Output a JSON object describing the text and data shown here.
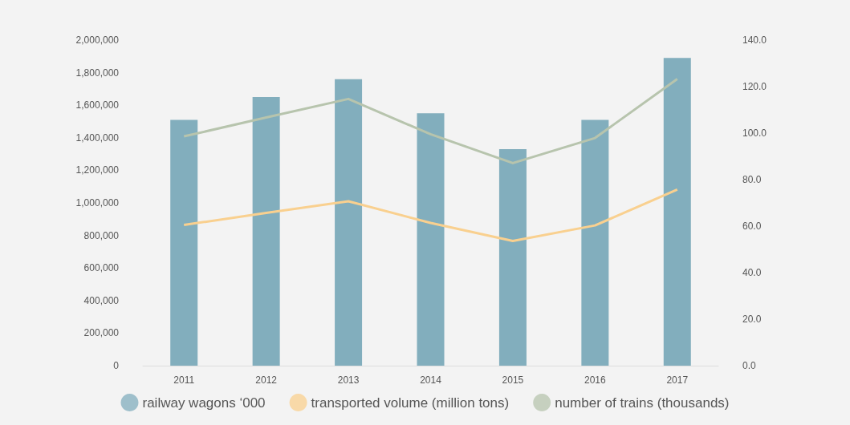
{
  "chart_data": {
    "type": "bar",
    "categories": [
      "2011",
      "2012",
      "2013",
      "2014",
      "2015",
      "2016",
      "2017"
    ],
    "series": [
      {
        "name": "railway wagons ‘000",
        "color": "#82aebd",
        "values": [
          1510000,
          1650000,
          1760000,
          1550000,
          1330000,
          1510000,
          1890000
        ]
      },
      {
        "name": "transported volume (million tons)",
        "type": "line",
        "axis": "y2",
        "color": "#f9d08f",
        "values": [
          60.5,
          65.7,
          70.7,
          61.4,
          53.6,
          60.3,
          75.7
        ]
      },
      {
        "name": "number of trains (thousands)",
        "type": "line",
        "axis": "y2",
        "color": "#b7c4ad",
        "values": [
          98.6,
          106.7,
          114.7,
          99.5,
          87.1,
          97.9,
          123.3
        ]
      }
    ],
    "ylim": [
      0,
      2000000
    ],
    "yticks": [
      0,
      {
        "value": 200000,
        "label": "200,000"
      },
      {
        "value": 400000,
        "label": "400,000"
      },
      {
        "value": 600000,
        "label": "600,000"
      },
      {
        "value": 800000,
        "label": "800,000"
      },
      {
        "value": 1000000,
        "label": "1,000,000"
      },
      {
        "value": 1200000,
        "label": "1,200,000"
      },
      {
        "value": 1400000,
        "label": "1,400,000"
      },
      {
        "value": 1600000,
        "label": "1,600,000"
      },
      {
        "value": 1800000,
        "label": "1,800,000"
      },
      {
        "value": 2000000,
        "label": "2,000,000"
      }
    ],
    "y2lim": [
      0,
      140
    ],
    "y2ticks": [
      {
        "value": 0,
        "label": "0.0"
      },
      {
        "value": 20,
        "label": "20.0"
      },
      {
        "value": 40,
        "label": "40.0"
      },
      {
        "value": 60,
        "label": "60.0"
      },
      {
        "value": 80,
        "label": "80.0"
      },
      {
        "value": 100,
        "label": "100.0"
      },
      {
        "value": 120,
        "label": "120.0"
      },
      {
        "value": 140,
        "label": "140.0"
      }
    ],
    "grid": false,
    "legend": "bottom",
    "marker": "none",
    "line_style": "solid"
  }
}
